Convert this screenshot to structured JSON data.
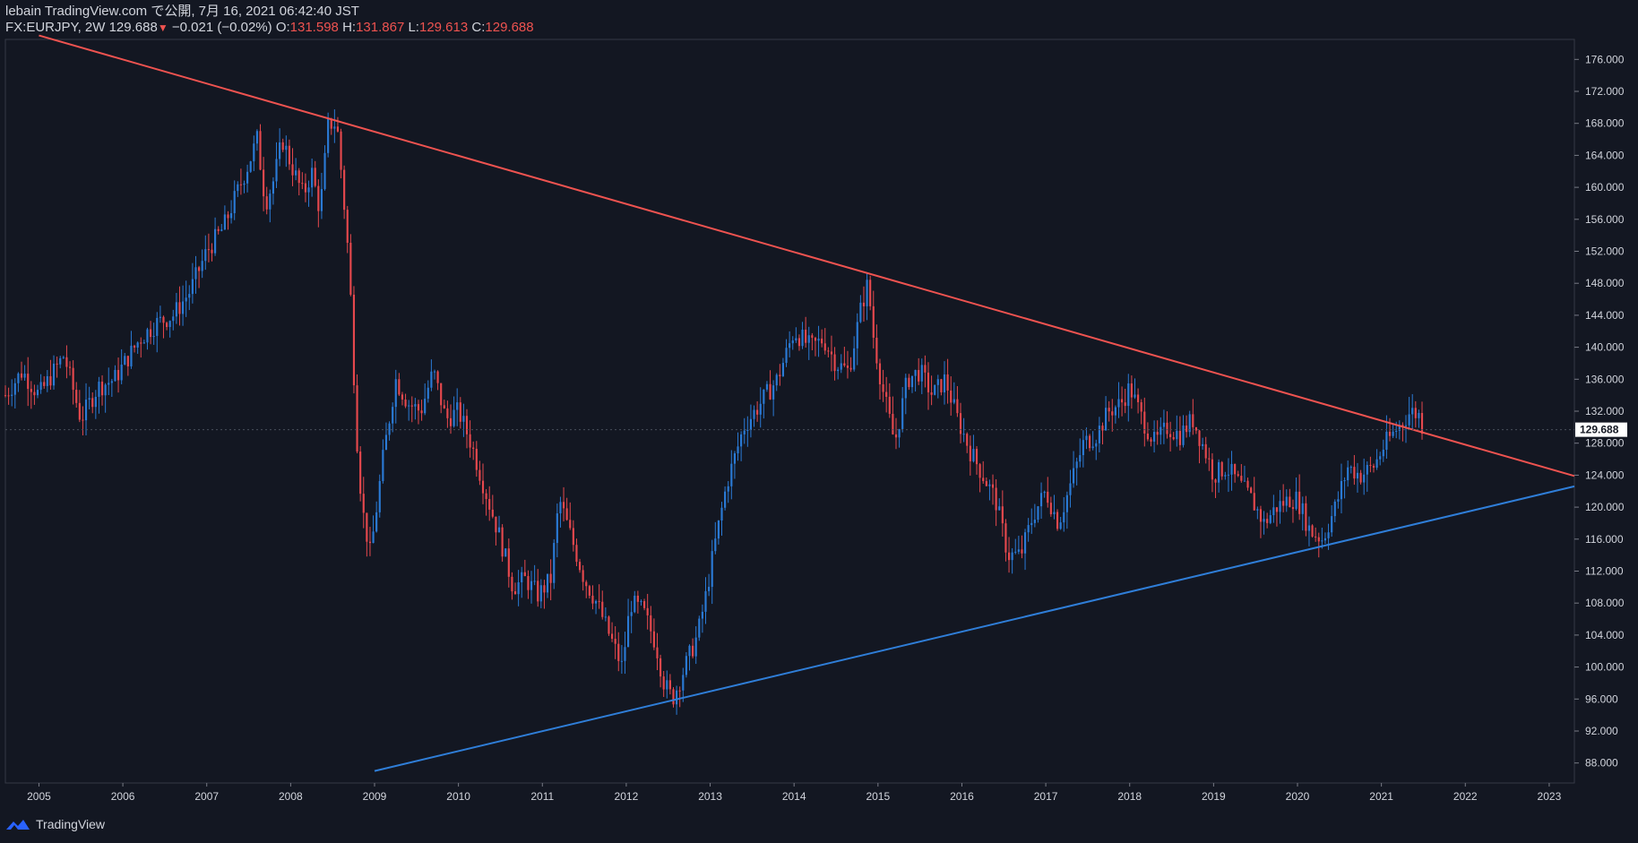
{
  "header": {
    "line1": "lebain TradingView.com で公開, 7月 16, 2021 06:42:40 JST",
    "symbol": "FX:EURJPY, 2W",
    "last": "129.688",
    "change": "−0.021 (−0.02%)",
    "o_label": "O:",
    "o_value": "131.598",
    "h_label": "H:",
    "h_value": "131.867",
    "l_label": "L:",
    "l_value": "129.613",
    "c_label": "C:",
    "c_value": "129.688"
  },
  "footer": {
    "brand": "TradingView"
  },
  "colors": {
    "background": "#131722",
    "up": "#2a7ad5",
    "down": "#e5484d",
    "resistance": "#ef5350",
    "support": "#2f7ed8",
    "text": "#d1d4dc"
  },
  "chart_data": {
    "type": "candlestick",
    "title": "FX:EURJPY, 2W",
    "ylim": [
      85.5,
      178.5
    ],
    "xlim": [
      2004.6,
      2023.3
    ],
    "y_ticks": [
      "176.000",
      "172.000",
      "168.000",
      "164.000",
      "160.000",
      "156.000",
      "152.000",
      "148.000",
      "144.000",
      "140.000",
      "136.000",
      "132.000",
      "128.000",
      "124.000",
      "120.000",
      "116.000",
      "112.000",
      "108.000",
      "104.000",
      "100.000",
      "96.000",
      "92.000",
      "88.000"
    ],
    "x_ticks": [
      "2005",
      "2006",
      "2007",
      "2008",
      "2009",
      "2010",
      "2011",
      "2012",
      "2013",
      "2014",
      "2015",
      "2016",
      "2017",
      "2018",
      "2019",
      "2020",
      "2021",
      "2022",
      "2023"
    ],
    "last_price_label": "129.688",
    "price_path": [
      [
        2004.6,
        134
      ],
      [
        2004.8,
        137
      ],
      [
        2005.0,
        134
      ],
      [
        2005.3,
        139
      ],
      [
        2005.5,
        131
      ],
      [
        2005.7,
        135
      ],
      [
        2005.9,
        136
      ],
      [
        2006.2,
        141
      ],
      [
        2006.4,
        143
      ],
      [
        2006.6,
        144
      ],
      [
        2006.8,
        147
      ],
      [
        2007.0,
        152
      ],
      [
        2007.2,
        155
      ],
      [
        2007.35,
        159
      ],
      [
        2007.5,
        163
      ],
      [
        2007.6,
        166
      ],
      [
        2007.7,
        158
      ],
      [
        2007.8,
        161
      ],
      [
        2007.9,
        166
      ],
      [
        2008.0,
        163
      ],
      [
        2008.15,
        159
      ],
      [
        2008.25,
        162
      ],
      [
        2008.35,
        157
      ],
      [
        2008.45,
        168
      ],
      [
        2008.55,
        168
      ],
      [
        2008.62,
        160
      ],
      [
        2008.7,
        150
      ],
      [
        2008.78,
        130
      ],
      [
        2008.85,
        120
      ],
      [
        2008.95,
        114
      ],
      [
        2009.1,
        126
      ],
      [
        2009.25,
        136
      ],
      [
        2009.4,
        133
      ],
      [
        2009.55,
        132
      ],
      [
        2009.7,
        137
      ],
      [
        2009.85,
        131
      ],
      [
        2010.0,
        132
      ],
      [
        2010.15,
        128
      ],
      [
        2010.35,
        121
      ],
      [
        2010.5,
        116
      ],
      [
        2010.65,
        110
      ],
      [
        2010.8,
        111
      ],
      [
        2010.95,
        109
      ],
      [
        2011.1,
        111
      ],
      [
        2011.2,
        121
      ],
      [
        2011.35,
        116
      ],
      [
        2011.5,
        111
      ],
      [
        2011.65,
        108
      ],
      [
        2011.8,
        104
      ],
      [
        2011.95,
        100
      ],
      [
        2012.05,
        108
      ],
      [
        2012.2,
        107
      ],
      [
        2012.35,
        103
      ],
      [
        2012.45,
        98
      ],
      [
        2012.55,
        96
      ],
      [
        2012.7,
        100
      ],
      [
        2012.85,
        104
      ],
      [
        2012.95,
        109
      ],
      [
        2013.05,
        115
      ],
      [
        2013.2,
        123
      ],
      [
        2013.4,
        130
      ],
      [
        2013.6,
        133
      ],
      [
        2013.8,
        136
      ],
      [
        2014.0,
        142
      ],
      [
        2014.2,
        140
      ],
      [
        2014.35,
        141
      ],
      [
        2014.5,
        138
      ],
      [
        2014.65,
        137
      ],
      [
        2014.8,
        145
      ],
      [
        2014.88,
        148
      ],
      [
        2014.95,
        141
      ],
      [
        2015.05,
        135
      ],
      [
        2015.2,
        128
      ],
      [
        2015.35,
        136
      ],
      [
        2015.5,
        137
      ],
      [
        2015.65,
        134
      ],
      [
        2015.8,
        136
      ],
      [
        2015.95,
        131
      ],
      [
        2016.1,
        127
      ],
      [
        2016.25,
        124
      ],
      [
        2016.4,
        121
      ],
      [
        2016.55,
        114
      ],
      [
        2016.7,
        114
      ],
      [
        2016.85,
        119
      ],
      [
        2017.0,
        122
      ],
      [
        2017.15,
        118
      ],
      [
        2017.3,
        123
      ],
      [
        2017.45,
        128
      ],
      [
        2017.6,
        129
      ],
      [
        2017.75,
        132
      ],
      [
        2017.9,
        133
      ],
      [
        2018.0,
        135
      ],
      [
        2018.15,
        131
      ],
      [
        2018.3,
        128
      ],
      [
        2018.45,
        130
      ],
      [
        2018.6,
        129
      ],
      [
        2018.75,
        131
      ],
      [
        2018.9,
        127
      ],
      [
        2019.0,
        124
      ],
      [
        2019.15,
        125
      ],
      [
        2019.3,
        123
      ],
      [
        2019.45,
        121
      ],
      [
        2019.6,
        118
      ],
      [
        2019.75,
        120
      ],
      [
        2019.9,
        121
      ],
      [
        2020.0,
        121
      ],
      [
        2020.15,
        117
      ],
      [
        2020.3,
        116
      ],
      [
        2020.45,
        120
      ],
      [
        2020.6,
        125
      ],
      [
        2020.75,
        124
      ],
      [
        2020.9,
        125
      ],
      [
        2021.05,
        128
      ],
      [
        2021.2,
        130
      ],
      [
        2021.35,
        132
      ],
      [
        2021.45,
        131.5
      ],
      [
        2021.5,
        129.7
      ]
    ],
    "resistance_line": {
      "from": [
        2005.0,
        179
      ],
      "to": [
        2023.3,
        123.9
      ]
    },
    "support_line": {
      "from": [
        2009.0,
        87
      ],
      "to": [
        2023.3,
        122.6
      ]
    }
  }
}
